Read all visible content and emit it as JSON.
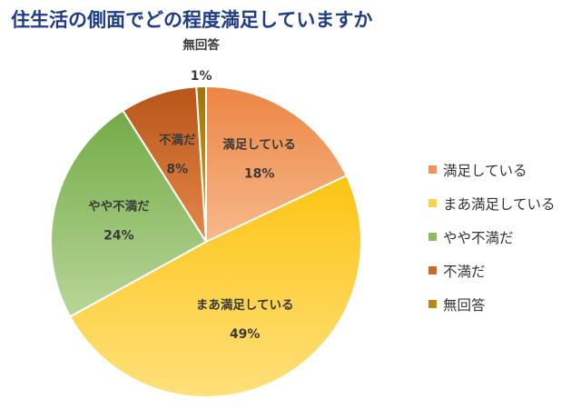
{
  "chart_data": {
    "type": "pie",
    "title": "住生活の側面でどの程度満足していますか",
    "categories": [
      "満足している",
      "まあ満足している",
      "やや不満だ",
      "不満だ",
      "無回答"
    ],
    "values": [
      18,
      49,
      24,
      8,
      1
    ],
    "value_labels": [
      "18%",
      "49%",
      "24%",
      "8%",
      "1%"
    ],
    "colors": [
      [
        "#f7b98b",
        "#ec8543"
      ],
      [
        "#ffe07a",
        "#fbc413"
      ],
      [
        "#b8d699",
        "#73ab46"
      ],
      [
        "#e4884a",
        "#b85518"
      ],
      [
        "#d2a518",
        "#9c7608"
      ]
    ],
    "legend_colors": [
      "#f0935a",
      "#fcd249",
      "#8cbd5d",
      "#c86a2a",
      "#b48d0f"
    ],
    "start_angle_deg": 0,
    "direction": "clockwise",
    "legend_position": "right"
  }
}
